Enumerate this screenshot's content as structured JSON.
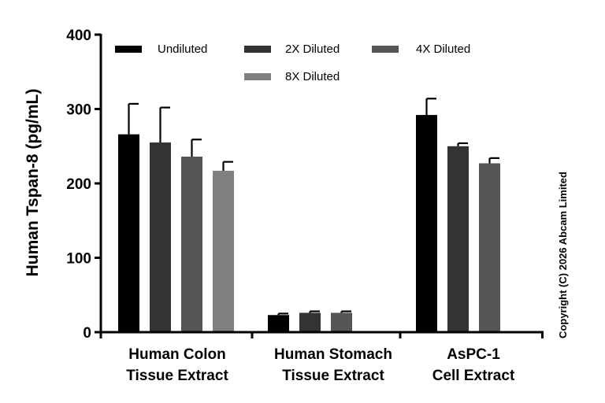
{
  "chart_data": {
    "type": "bar",
    "title": "",
    "xlabel": "",
    "ylabel": "Human Tspan-8 (pg/mL)",
    "ylim": [
      0,
      400
    ],
    "yticks": [
      0,
      100,
      200,
      300,
      400
    ],
    "categories": [
      [
        "Human Colon",
        "Tissue Extract"
      ],
      [
        "Human Stomach",
        "Tissue Extract"
      ],
      [
        "AsPC-1",
        "Cell Extract"
      ]
    ],
    "series": [
      {
        "name": "Undiluted",
        "color": "#000000",
        "values": [
          266,
          23,
          292
        ],
        "errors": [
          41,
          2,
          22
        ]
      },
      {
        "name": "2X Diluted",
        "color": "#333333",
        "values": [
          255,
          26,
          250
        ],
        "errors": [
          47,
          2,
          4
        ]
      },
      {
        "name": "4X Diluted",
        "color": "#555555",
        "values": [
          236,
          26,
          227
        ],
        "errors": [
          23,
          2,
          7
        ]
      },
      {
        "name": "8X Diluted",
        "color": "#808080",
        "values": [
          217,
          null,
          null
        ],
        "errors": [
          12,
          null,
          null
        ]
      }
    ],
    "legend_position": "top",
    "copyright": "Copyright (C) 2026 Abcam Limited"
  }
}
